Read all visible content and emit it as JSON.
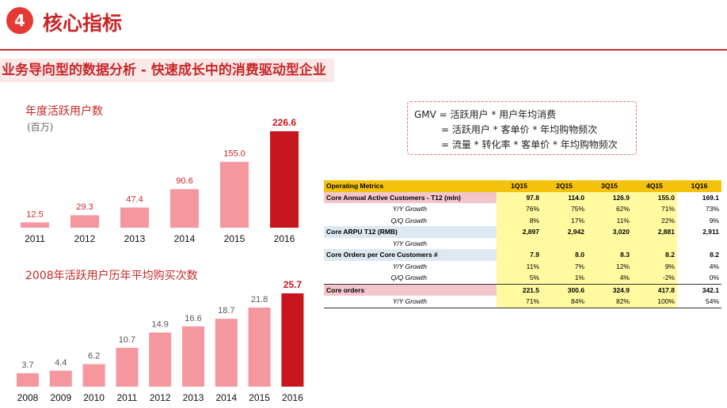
{
  "header": {
    "badge": "4",
    "title": "核心指标"
  },
  "subtitle": "业务导向型的数据分析 - 快速成长中的消费驱动型企业",
  "colors": {
    "bar_light": "#f4979f",
    "bar_highlight": "#c8161e",
    "accent": "#d32f2f"
  },
  "chart_data": [
    {
      "type": "bar",
      "title": "年度活跃用户数",
      "unit_label": "(百万)",
      "categories": [
        "2011",
        "2012",
        "2013",
        "2014",
        "2015",
        "2016"
      ],
      "values": [
        12.5,
        29.3,
        47.4,
        90.6,
        155.0,
        226.6
      ],
      "value_labels": [
        "12.5",
        "29.3",
        "47.4",
        "90.6",
        "155.0",
        "226.6"
      ],
      "highlight_index": 5,
      "ylim": [
        0,
        226.6
      ]
    },
    {
      "type": "bar",
      "title": "2008年活跃用户历年平均购买次数",
      "categories": [
        "2008",
        "2009",
        "2010",
        "2011",
        "2012",
        "2013",
        "2014",
        "2015",
        "2016"
      ],
      "values": [
        3.7,
        4.4,
        6.2,
        10.7,
        14.9,
        16.6,
        18.7,
        21.8,
        25.7
      ],
      "value_labels": [
        "3.7",
        "4.4",
        "6.2",
        "10.7",
        "14.9",
        "16.6",
        "18.7",
        "21.8",
        "25.7"
      ],
      "highlight_index": 8,
      "ylim": [
        0,
        25.7
      ]
    }
  ],
  "formula": {
    "line1": "GMV = 活跃用户 * 用户年均消费",
    "line2": "= 活跃用户 * 客单价 * 年均购物频次",
    "line3": "= 流量 * 转化率 * 客单价 * 年均购物频次"
  },
  "table": {
    "header": [
      "Operating Metrics",
      "1Q15",
      "2Q15",
      "3Q15",
      "4Q15",
      "1Q16"
    ],
    "rows": [
      {
        "label": "Core Annual Active Customers - T12 (mln)",
        "values": [
          "97.8",
          "114.0",
          "126.9",
          "155.0",
          "169.1"
        ]
      },
      {
        "label": "Y/Y Growth",
        "values": [
          "76%",
          "75%",
          "62%",
          "71%",
          "73%"
        ]
      },
      {
        "label": "Q/Q Growth",
        "values": [
          "8%",
          "17%",
          "11%",
          "22%",
          "9%"
        ]
      },
      {
        "label": "Core ARPU T12 (RMB)",
        "values": [
          "2,897",
          "2,942",
          "3,020",
          "2,881",
          "2,911"
        ]
      },
      {
        "label": "Y/Y Growth",
        "values": [
          "",
          "",
          "",
          "",
          ""
        ]
      },
      {
        "label": "Core Orders per Core Customers #",
        "values": [
          "7.9",
          "8.0",
          "8.3",
          "8.2",
          "8.2"
        ]
      },
      {
        "label": "Y/Y Growth",
        "values": [
          "11%",
          "7%",
          "12%",
          "9%",
          "4%"
        ]
      },
      {
        "label": "Q/Q Growth",
        "values": [
          "5%",
          "1%",
          "4%",
          "-2%",
          "0%"
        ]
      },
      {
        "label": "Core orders",
        "values": [
          "221.5",
          "300.6",
          "324.9",
          "417.8",
          "342.1"
        ]
      },
      {
        "label": "Y/Y Growth",
        "values": [
          "71%",
          "84%",
          "82%",
          "100%",
          "54%"
        ]
      }
    ]
  }
}
